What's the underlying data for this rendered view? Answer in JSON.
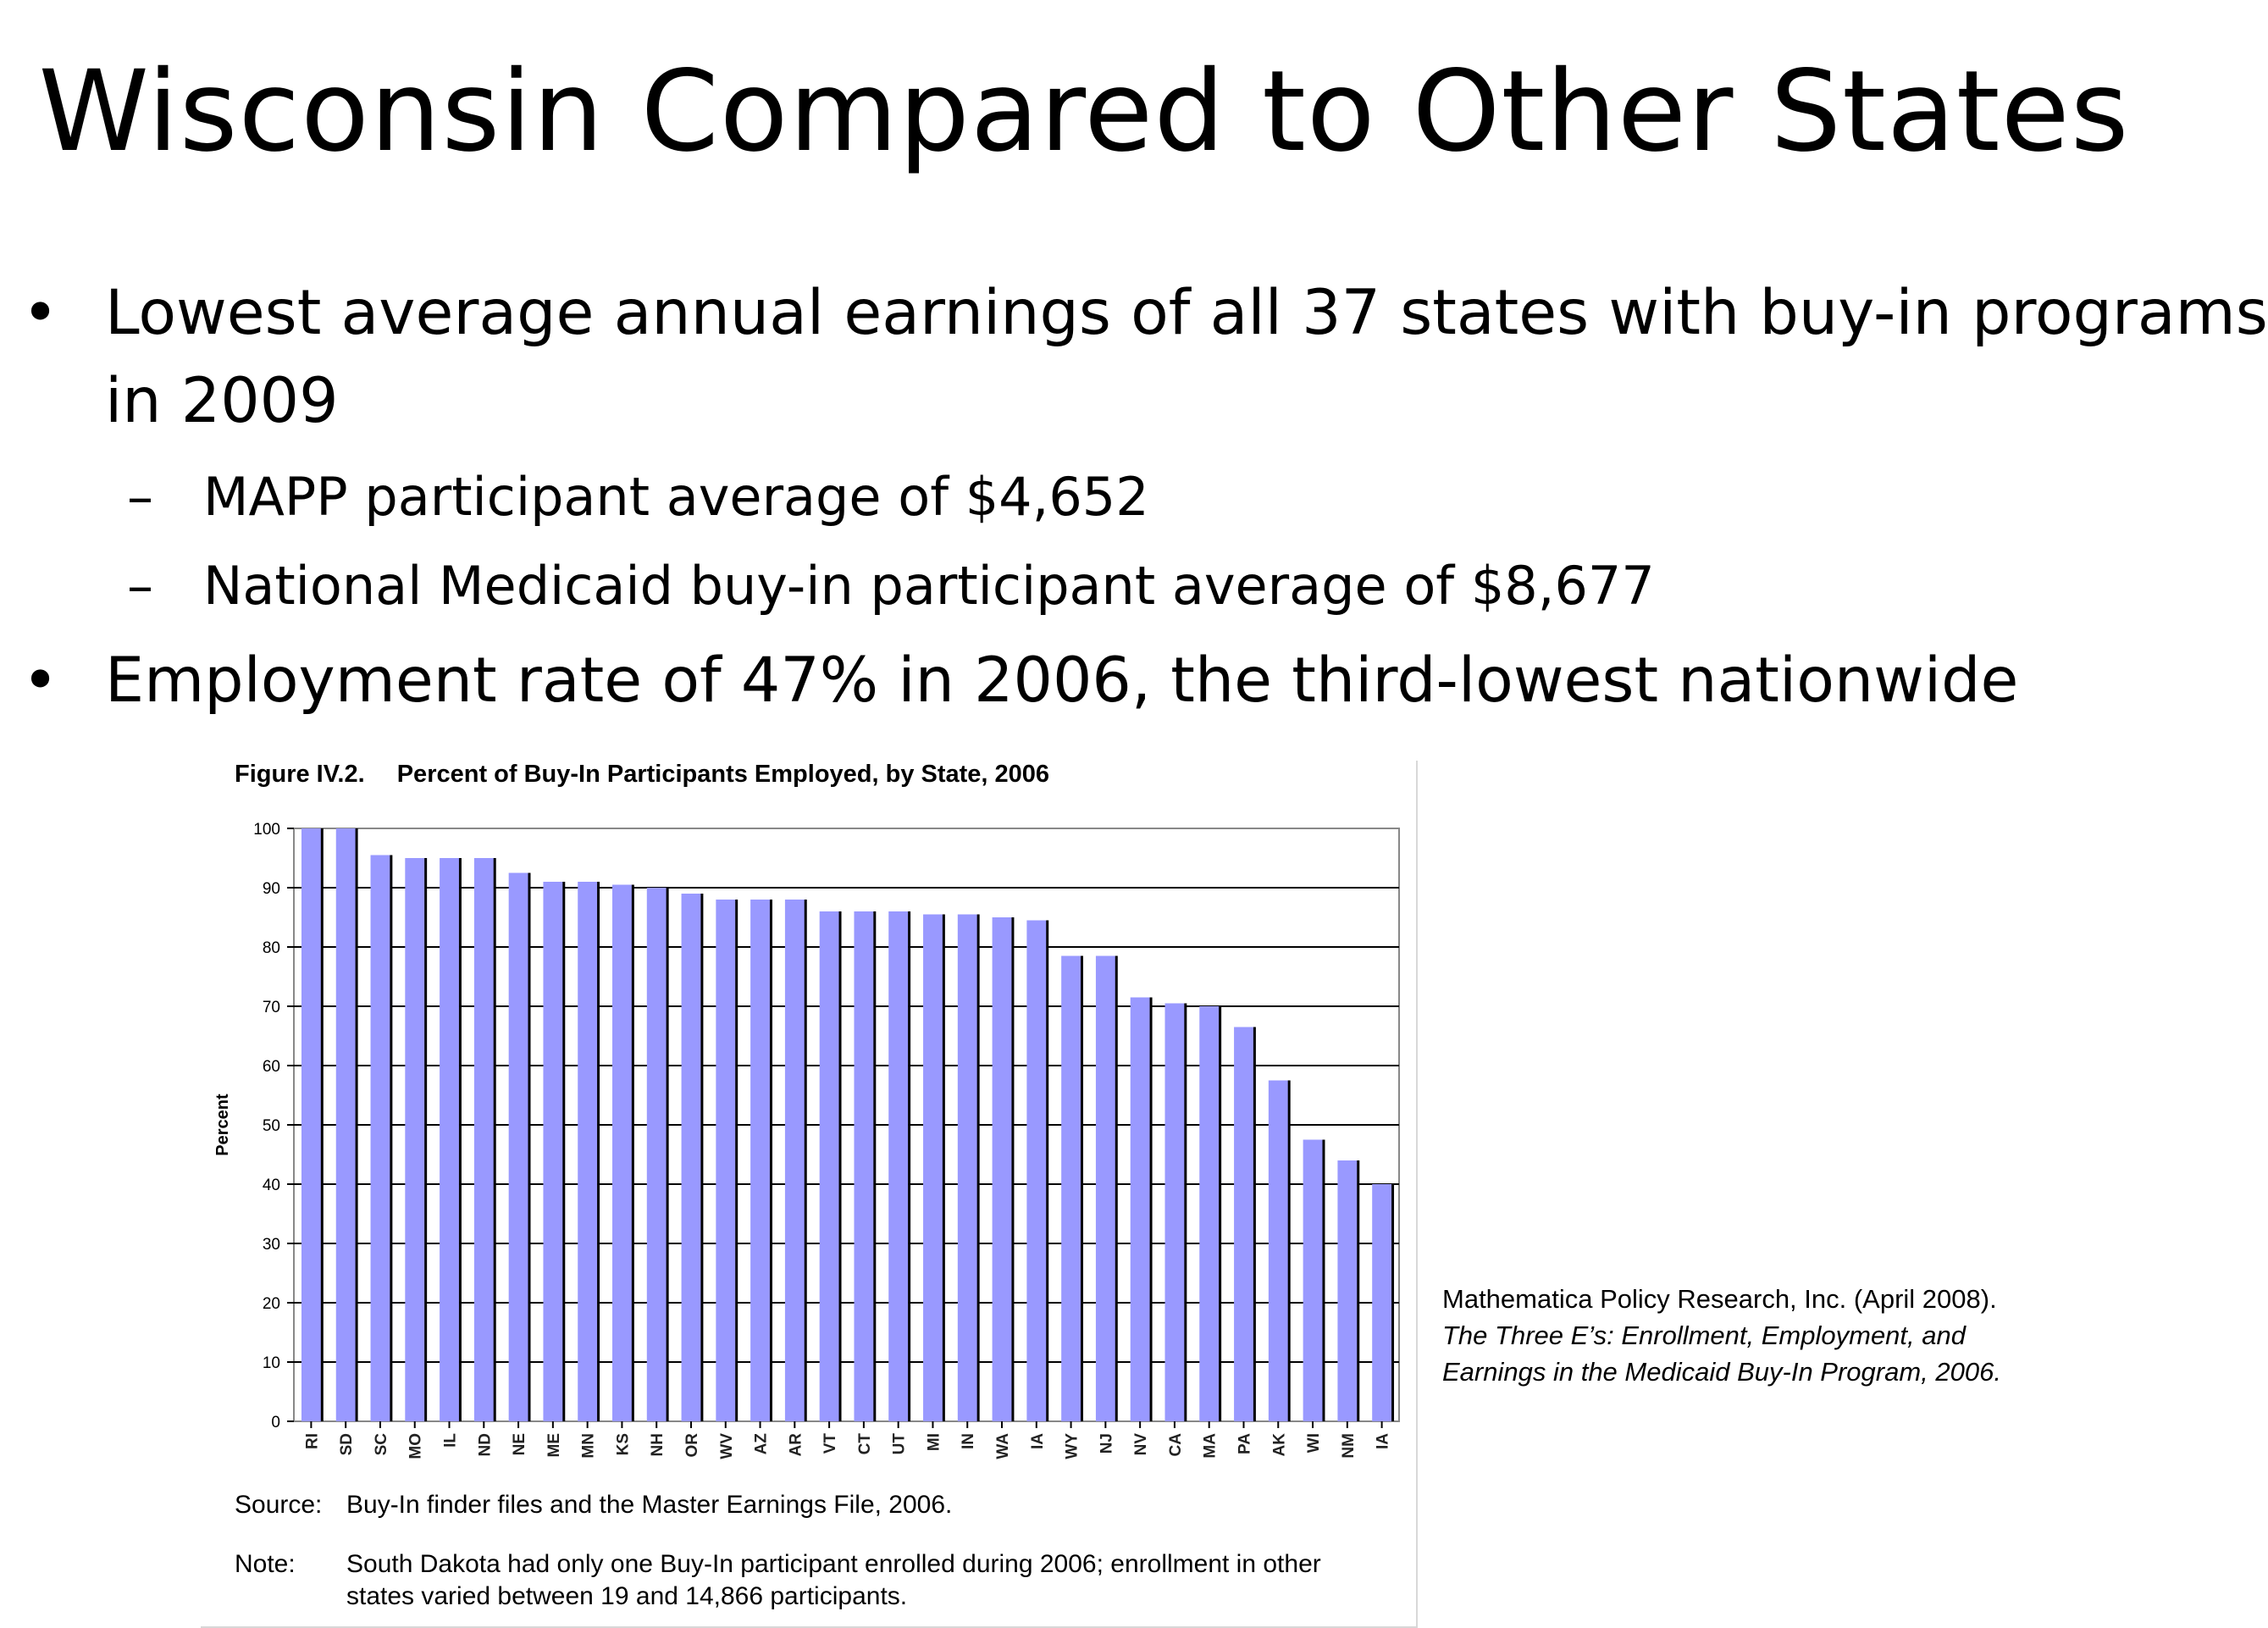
{
  "slide": {
    "title": "Wisconsin Compared to Other States",
    "bullet_mark": "•",
    "dash_mark": "–",
    "bullet1_line1": "Lowest average annual earnings of all 37 states with buy-in programs",
    "bullet1_line2": "in 2009",
    "sub1": "MAPP participant average of $4,652",
    "sub2": "National Medicaid buy-in participant average of $8,677",
    "bullet2": "Employment rate of 47% in 2006, the third-lowest nationwide"
  },
  "figure": {
    "number": "Figure IV.2.",
    "caption": "Percent of Buy-In Participants Employed, by State, 2006",
    "source_label": "Source:",
    "source_text": "Buy-In finder files and the Master Earnings File, 2006.",
    "note_label": "Note:",
    "note_text": "South Dakota had only one Buy-In participant enrolled during 2006; enrollment in other states varied between 19 and 14,866 participants."
  },
  "citation": {
    "plain": "Mathematica Policy Research, Inc. (April 2008). ",
    "italic": "The Three E’s: Enrollment, Employment, and Earnings in the Medicaid Buy-In Program, 2006."
  },
  "chart_data": {
    "type": "bar",
    "title": "Percent of Buy-In Participants Employed, by State, 2006",
    "xlabel": "",
    "ylabel": "Percent",
    "ylim": [
      0,
      100
    ],
    "yticks": [
      0,
      10,
      20,
      30,
      40,
      50,
      60,
      70,
      80,
      90,
      100
    ],
    "grid": true,
    "bar_color": "#9999ff",
    "categories": [
      "RI",
      "SD",
      "SC",
      "MO",
      "IL",
      "ND",
      "NE",
      "ME",
      "MN",
      "KS",
      "NH",
      "OR",
      "WV",
      "AZ",
      "AR",
      "VT",
      "CT",
      "UT",
      "MI",
      "IN",
      "WA",
      "IA",
      "WY",
      "NJ",
      "NV",
      "CA",
      "MA",
      "PA",
      "AK",
      "WI",
      "NM",
      "IA"
    ],
    "values": [
      100,
      100,
      95.5,
      95,
      95,
      95,
      92.5,
      91,
      91,
      90.5,
      90,
      89,
      88,
      88,
      88,
      86,
      86,
      86,
      85.5,
      85.5,
      85,
      84.5,
      78.5,
      78.5,
      71.5,
      70.5,
      70,
      66.5,
      57.5,
      47.5,
      44,
      40
    ]
  }
}
